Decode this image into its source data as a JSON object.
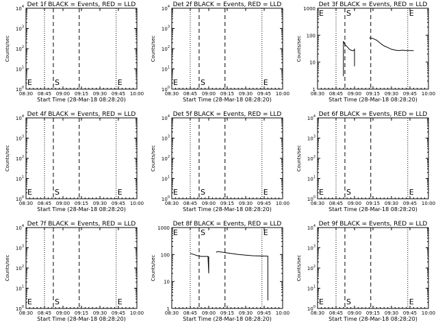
{
  "chart_data": [
    {
      "type": "line",
      "title": "Det 1f BLACK = Events, RED = LLD",
      "ylabel": "Counts/sec",
      "xlabel": "Start Time (28-Mar-18 08:28:20)",
      "x_ticks": [
        "08:30",
        "08:45",
        "09:00",
        "09:15",
        "09:30",
        "09:45",
        "10:00"
      ],
      "y_scale": "log",
      "ylim": [
        1,
        10000
      ],
      "y_ticks": [
        {
          "b": "10",
          "e": "0"
        },
        {
          "b": "10",
          "e": "1"
        },
        {
          "b": "10",
          "e": "2"
        },
        {
          "b": "10",
          "e": "3"
        },
        {
          "b": "10",
          "e": "4"
        }
      ],
      "markers": {
        "S": "S",
        "E": "E"
      },
      "series": []
    },
    {
      "type": "line",
      "title": "Det 2f BLACK = Events, RED = LLD",
      "ylabel": "Counts/sec",
      "xlabel": "Start Time (28-Mar-18 08:28:20)",
      "x_ticks": [
        "08:30",
        "08:45",
        "09:00",
        "09:15",
        "09:30",
        "09:45",
        "10:00"
      ],
      "y_scale": "log",
      "ylim": [
        1,
        10000
      ],
      "y_ticks": [
        {
          "b": "10",
          "e": "0"
        },
        {
          "b": "10",
          "e": "1"
        },
        {
          "b": "10",
          "e": "2"
        },
        {
          "b": "10",
          "e": "3"
        },
        {
          "b": "10",
          "e": "4"
        }
      ],
      "markers": {
        "S": "S",
        "E": "E"
      },
      "series": []
    },
    {
      "type": "line",
      "title": "Det 3f BLACK = Events, RED = LLD",
      "ylabel": "Counts/sec",
      "xlabel": "Start Time (28-Mar-18 08:28:20)",
      "x_ticks": [
        "08:30",
        "08:45",
        "09:00",
        "09:15",
        "09:30",
        "09:45",
        "10:00"
      ],
      "y_scale": "log",
      "ylim": [
        1,
        1000
      ],
      "y_ticks": [
        {
          "b": "1",
          "e": ""
        },
        {
          "b": "10",
          "e": ""
        },
        {
          "b": "100",
          "e": ""
        },
        {
          "b": "1000",
          "e": ""
        }
      ],
      "markers": {
        "S": "S",
        "E": "E"
      },
      "series": [
        {
          "color": "#000000",
          "points": [
            [
              8.85,
              3
            ],
            [
              8.85,
              60
            ],
            [
              8.87,
              45
            ],
            [
              8.89,
              40
            ],
            [
              8.91,
              35
            ],
            [
              8.93,
              30
            ],
            [
              8.95,
              28
            ],
            [
              8.97,
              27
            ],
            [
              8.99,
              27
            ],
            [
              9.0,
              30
            ],
            [
              9.0,
              12
            ],
            [
              9.0,
              7
            ]
          ]
        },
        {
          "color": "#000000",
          "points": [
            [
              9.2,
              80
            ],
            [
              9.25,
              75
            ],
            [
              9.3,
              65
            ],
            [
              9.35,
              50
            ],
            [
              9.4,
              40
            ],
            [
              9.45,
              35
            ],
            [
              9.5,
              30
            ],
            [
              9.55,
              28
            ],
            [
              9.6,
              27
            ],
            [
              9.65,
              28
            ],
            [
              9.7,
              27
            ],
            [
              9.75,
              27
            ],
            [
              9.8,
              27
            ]
          ]
        }
      ]
    },
    {
      "type": "line",
      "title": "Det 4f BLACK = Events, RED = LLD",
      "ylabel": "Counts/sec",
      "xlabel": "Start Time (28-Mar-18 08:28:20)",
      "x_ticks": [
        "08:30",
        "08:45",
        "09:00",
        "09:15",
        "09:30",
        "09:45",
        "10:00"
      ],
      "y_scale": "log",
      "ylim": [
        1,
        10000
      ],
      "y_ticks": [
        {
          "b": "10",
          "e": "0"
        },
        {
          "b": "10",
          "e": "1"
        },
        {
          "b": "10",
          "e": "2"
        },
        {
          "b": "10",
          "e": "3"
        },
        {
          "b": "10",
          "e": "4"
        }
      ],
      "markers": {
        "S": "S",
        "E": "E"
      },
      "series": []
    },
    {
      "type": "line",
      "title": "Det 5f BLACK = Events, RED = LLD",
      "ylabel": "Counts/sec",
      "xlabel": "Start Time (28-Mar-18 08:28:20)",
      "x_ticks": [
        "08:30",
        "08:45",
        "09:00",
        "09:15",
        "09:30",
        "09:45",
        "10:00"
      ],
      "y_scale": "log",
      "ylim": [
        1,
        10000
      ],
      "y_ticks": [
        {
          "b": "10",
          "e": "0"
        },
        {
          "b": "10",
          "e": "1"
        },
        {
          "b": "10",
          "e": "2"
        },
        {
          "b": "10",
          "e": "3"
        },
        {
          "b": "10",
          "e": "4"
        }
      ],
      "markers": {
        "S": "S",
        "E": "E"
      },
      "series": []
    },
    {
      "type": "line",
      "title": "Det 6f BLACK = Events, RED = LLD",
      "ylabel": "Counts/sec",
      "xlabel": "Start Time (28-Mar-18 08:28:20)",
      "x_ticks": [
        "08:30",
        "08:45",
        "09:00",
        "09:15",
        "09:30",
        "09:45",
        "10:00"
      ],
      "y_scale": "log",
      "ylim": [
        1,
        10000
      ],
      "y_ticks": [
        {
          "b": "10",
          "e": "0"
        },
        {
          "b": "10",
          "e": "1"
        },
        {
          "b": "10",
          "e": "2"
        },
        {
          "b": "10",
          "e": "3"
        },
        {
          "b": "10",
          "e": "4"
        }
      ],
      "markers": {
        "S": "S",
        "E": "E"
      },
      "series": []
    },
    {
      "type": "line",
      "title": "Det 7f BLACK = Events, RED = LLD",
      "ylabel": "Counts/sec",
      "xlabel": "Start Time (28-Mar-18 08:28:20)",
      "x_ticks": [
        "08:30",
        "08:45",
        "09:00",
        "09:15",
        "09:30",
        "09:45",
        "10:00"
      ],
      "y_scale": "log",
      "ylim": [
        1,
        10000
      ],
      "y_ticks": [
        {
          "b": "10",
          "e": "0"
        },
        {
          "b": "10",
          "e": "1"
        },
        {
          "b": "10",
          "e": "2"
        },
        {
          "b": "10",
          "e": "3"
        },
        {
          "b": "10",
          "e": "4"
        }
      ],
      "markers": {
        "S": "S",
        "E": "E"
      },
      "series": []
    },
    {
      "type": "line",
      "title": "Det 8f BLACK = Events, RED = LLD",
      "ylabel": "Counts/sec",
      "xlabel": "Start Time (28-Mar-18 08:28:20)",
      "x_ticks": [
        "08:30",
        "08:45",
        "09:00",
        "09:15",
        "09:30",
        "09:45",
        "10:00"
      ],
      "y_scale": "log",
      "ylim": [
        1,
        1000
      ],
      "y_ticks": [
        {
          "b": "1",
          "e": ""
        },
        {
          "b": "10",
          "e": ""
        },
        {
          "b": "100",
          "e": ""
        },
        {
          "b": "1000",
          "e": ""
        }
      ],
      "markers": {
        "S": "S",
        "E": "E"
      },
      "series": [
        {
          "color": "#000000",
          "points": [
            [
              8.75,
              110
            ],
            [
              8.8,
              100
            ],
            [
              8.85,
              90
            ],
            [
              8.9,
              85
            ],
            [
              8.95,
              85
            ],
            [
              8.99,
              85
            ],
            [
              9.0,
              20
            ],
            [
              9.0,
              85
            ]
          ]
        },
        {
          "color": "#000000",
          "points": [
            [
              9.1,
              120
            ],
            [
              9.12,
              130
            ],
            [
              9.2,
              120
            ],
            [
              9.3,
              110
            ],
            [
              9.4,
              100
            ],
            [
              9.5,
              95
            ],
            [
              9.6,
              90
            ],
            [
              9.7,
              88
            ],
            [
              9.8,
              87
            ],
            [
              9.8,
              2
            ]
          ]
        }
      ]
    },
    {
      "type": "line",
      "title": "Det 9f BLACK = Events, RED = LLD",
      "ylabel": "Counts/sec",
      "xlabel": "Start Time (28-Mar-18 08:28:20)",
      "x_ticks": [
        "08:30",
        "08:45",
        "09:00",
        "09:15",
        "09:30",
        "09:45",
        "10:00"
      ],
      "y_scale": "log",
      "ylim": [
        1,
        10000
      ],
      "y_ticks": [
        {
          "b": "10",
          "e": "0"
        },
        {
          "b": "10",
          "e": "1"
        },
        {
          "b": "10",
          "e": "2"
        },
        {
          "b": "10",
          "e": "3"
        },
        {
          "b": "10",
          "e": "4"
        }
      ],
      "markers": {
        "S": "S",
        "E": "E"
      },
      "series": []
    }
  ]
}
